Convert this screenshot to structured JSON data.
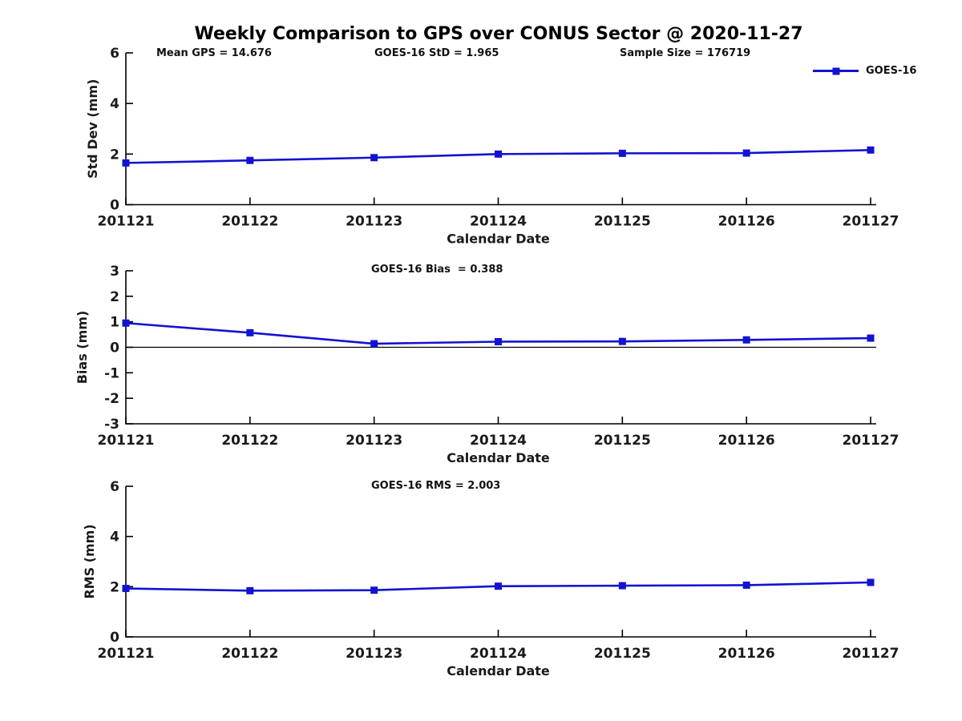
{
  "title": "Weekly Comparison to GPS over CONUS Sector @ 2020-11-27",
  "accent_color": "#1212d2",
  "axis_color": "#000000",
  "chart_data": [
    {
      "type": "line",
      "name": "std-dev",
      "title": "",
      "categories": [
        "201121",
        "201122",
        "201123",
        "201124",
        "201125",
        "201126",
        "201127"
      ],
      "series": [
        {
          "name": "GOES-16",
          "values": [
            1.65,
            1.75,
            1.86,
            2.0,
            2.03,
            2.04,
            2.16
          ]
        }
      ],
      "xlabel": "Calendar Date",
      "ylabel": "Std Dev (mm)",
      "ylim": [
        0,
        6
      ],
      "yticks": [
        0,
        2,
        4,
        6
      ],
      "grid": false,
      "zero_line": false,
      "legend": {
        "label": "GOES-16",
        "position": "top-right"
      },
      "annotations": [
        "Mean GPS = 14.676",
        "GOES-16 StD = 1.965",
        "Sample Size = 176719"
      ]
    },
    {
      "type": "line",
      "name": "bias",
      "title": "",
      "categories": [
        "201121",
        "201122",
        "201123",
        "201124",
        "201125",
        "201126",
        "201127"
      ],
      "series": [
        {
          "name": "GOES-16",
          "values": [
            0.95,
            0.57,
            0.14,
            0.22,
            0.23,
            0.29,
            0.36
          ]
        }
      ],
      "xlabel": "Calendar Date",
      "ylabel": "Bias (mm)",
      "ylim": [
        -3,
        3
      ],
      "yticks": [
        -3,
        -2,
        -1,
        0,
        1,
        2,
        3
      ],
      "grid": false,
      "zero_line": true,
      "annotations": [
        "GOES-16 Bias  = 0.388"
      ]
    },
    {
      "type": "line",
      "name": "rms",
      "title": "",
      "categories": [
        "201121",
        "201122",
        "201123",
        "201124",
        "201125",
        "201126",
        "201127"
      ],
      "series": [
        {
          "name": "GOES-16",
          "values": [
            1.93,
            1.84,
            1.86,
            2.02,
            2.04,
            2.06,
            2.17
          ]
        }
      ],
      "xlabel": "Calendar Date",
      "ylabel": "RMS (mm)",
      "ylim": [
        0,
        6
      ],
      "yticks": [
        0,
        2,
        4,
        6
      ],
      "grid": false,
      "zero_line": false,
      "annotations": [
        "GOES-16 RMS = 2.003"
      ]
    }
  ]
}
